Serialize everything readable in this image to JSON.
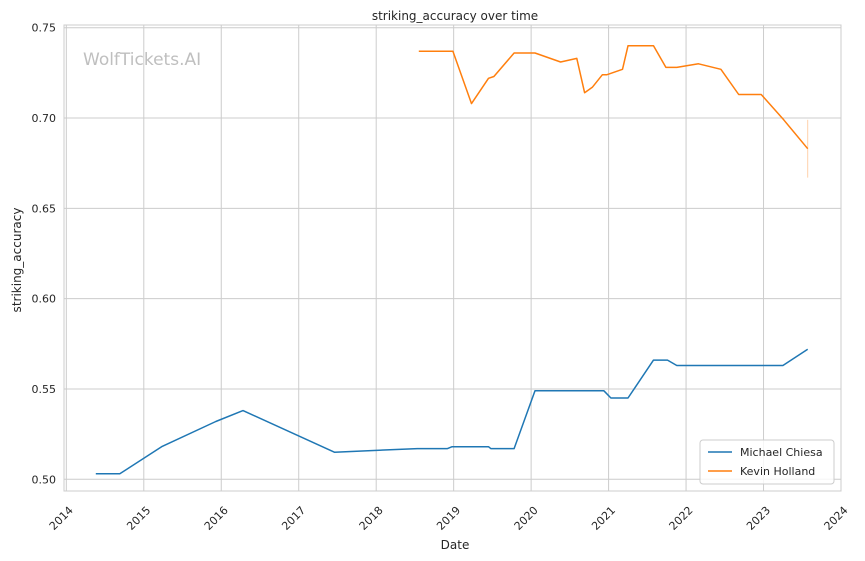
{
  "chart_data": {
    "type": "line",
    "title": "striking_accuracy over time",
    "xlabel": "Date",
    "ylabel": "striking_accuracy",
    "watermark": "WolfTickets.AI",
    "xlim": [
      2013.97,
      2024.0
    ],
    "ylim": [
      0.4935,
      0.7515
    ],
    "x_ticks": [
      2014,
      2015,
      2016,
      2017,
      2018,
      2019,
      2020,
      2021,
      2022,
      2023,
      2024
    ],
    "y_ticks": [
      0.5,
      0.55,
      0.6,
      0.65,
      0.7,
      0.75
    ],
    "y_tick_labels": [
      "0.50",
      "0.55",
      "0.60",
      "0.65",
      "0.70",
      "0.75"
    ],
    "grid": true,
    "legend_position": "lower-right",
    "series": [
      {
        "name": "Michael Chiesa",
        "color": "#1f77b4",
        "x": [
          2014.38,
          2014.69,
          2015.23,
          2015.93,
          2016.28,
          2017.46,
          2018.53,
          2018.92,
          2018.98,
          2019.45,
          2019.48,
          2019.78,
          2020.05,
          2020.94,
          2021.03,
          2021.25,
          2021.58,
          2021.76,
          2021.88,
          2022.0,
          2023.0,
          2023.25,
          2023.57
        ],
        "y": [
          0.503,
          0.503,
          0.518,
          0.532,
          0.538,
          0.515,
          0.517,
          0.517,
          0.518,
          0.518,
          0.517,
          0.517,
          0.549,
          0.549,
          0.545,
          0.545,
          0.566,
          0.566,
          0.563,
          0.563,
          0.563,
          0.563,
          0.572
        ]
      },
      {
        "name": "Kevin Holland",
        "color": "#ff7f0e",
        "x": [
          2018.55,
          2018.99,
          2019.23,
          2019.45,
          2019.52,
          2019.78,
          2020.05,
          2020.38,
          2020.59,
          2020.69,
          2020.79,
          2020.92,
          2020.98,
          2021.18,
          2021.25,
          2021.58,
          2021.74,
          2021.88,
          2022.16,
          2022.45,
          2022.68,
          2022.97,
          2023.26,
          2023.57
        ],
        "y": [
          0.737,
          0.737,
          0.708,
          0.722,
          0.723,
          0.736,
          0.736,
          0.731,
          0.733,
          0.714,
          0.717,
          0.724,
          0.724,
          0.727,
          0.74,
          0.74,
          0.728,
          0.728,
          0.73,
          0.727,
          0.713,
          0.713,
          0.699,
          0.683
        ]
      }
    ],
    "error_band": {
      "series": "Kevin Holland",
      "x": 2023.57,
      "y_low": 0.667,
      "y_high": 0.699
    }
  }
}
